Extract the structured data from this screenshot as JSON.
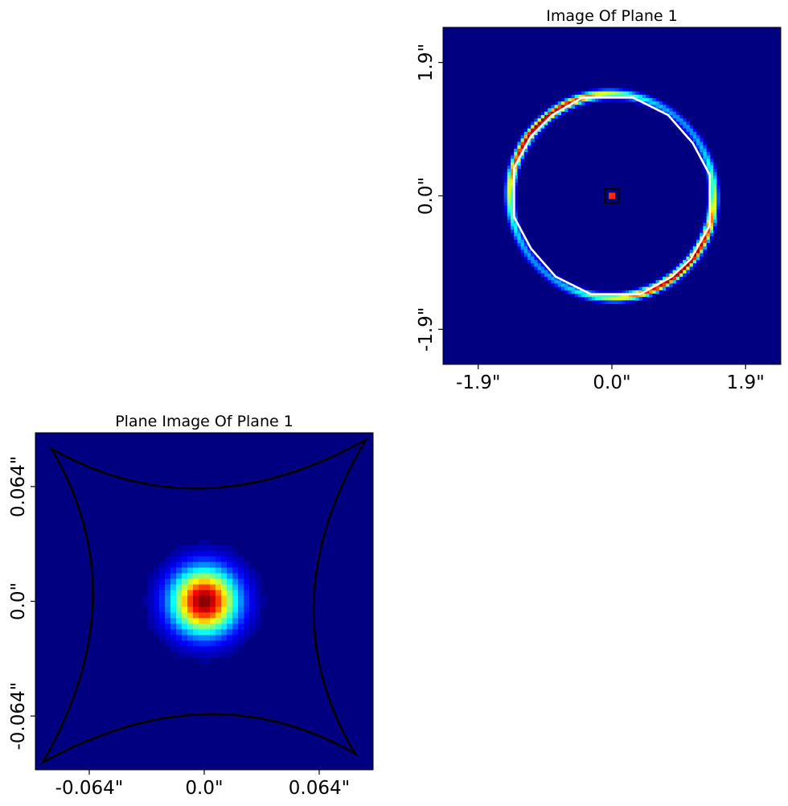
{
  "figure": {
    "colormap": "jet",
    "background": "#ffffff"
  },
  "chart_data": [
    {
      "type": "heatmap",
      "title": "Image Of Plane 1",
      "xlabel": "",
      "ylabel": "",
      "xlim": [
        -2.4,
        2.4
      ],
      "ylim": [
        -2.4,
        2.4
      ],
      "xticks": [
        -1.9,
        0.0,
        1.9
      ],
      "yticks": [
        -1.9,
        0.0,
        1.9
      ],
      "xtick_labels": [
        "-1.9\"",
        "0.0\"",
        "1.9\""
      ],
      "ytick_labels": [
        "-1.9\"",
        "0.0\"",
        "1.9\""
      ],
      "grid": false,
      "image": {
        "description": "Einstein ring of lensed light with arcs brightest at upper-left and lower-right, plus central compact image",
        "ring_radius": 1.45,
        "ring_width": 0.06,
        "bright_angles_deg": [
          135,
          315
        ],
        "central_peak": [
          0.0,
          0.0
        ]
      },
      "critical_curve": {
        "color": "#ffffff",
        "points": [
          [
            -0.42,
            1.4
          ],
          [
            0.3,
            1.4
          ],
          [
            0.8,
            1.15
          ],
          [
            1.15,
            0.75
          ],
          [
            1.39,
            0.3
          ],
          [
            1.39,
            -0.42
          ],
          [
            1.12,
            -0.9
          ],
          [
            0.85,
            -1.15
          ],
          [
            0.4,
            -1.4
          ],
          [
            -0.3,
            -1.4
          ],
          [
            -0.8,
            -1.15
          ],
          [
            -1.15,
            -0.75
          ],
          [
            -1.39,
            -0.3
          ],
          [
            -1.39,
            0.4
          ],
          [
            -1.15,
            0.85
          ],
          [
            -0.85,
            1.15
          ]
        ]
      },
      "caustic": {
        "color": "#000000",
        "halfsize": 0.1
      }
    },
    {
      "type": "heatmap",
      "title": "Plane Image Of Plane 1",
      "xlabel": "",
      "ylabel": "",
      "xlim": [
        -0.094,
        0.094
      ],
      "ylim": [
        -0.094,
        0.094
      ],
      "xticks": [
        -0.064,
        0.0,
        0.064
      ],
      "yticks": [
        -0.064,
        0.0,
        0.064
      ],
      "xtick_labels": [
        "-0.064\"",
        "0.0\"",
        "0.064\""
      ],
      "ytick_labels": [
        "-0.064\"",
        "0.0\"",
        "0.064\""
      ],
      "grid": false,
      "image": {
        "description": "Compact gaussian source centred at origin",
        "center": [
          0.0,
          0.0
        ],
        "sigma": 0.0125,
        "peak": 1.0
      },
      "caustic": {
        "color": "#000000",
        "corners": [
          [
            -0.085,
            0.085
          ],
          [
            0.09,
            0.09
          ],
          [
            0.084,
            -0.085
          ],
          [
            -0.09,
            -0.09
          ]
        ],
        "edge_midpoints": [
          [
            0.0,
            0.063
          ],
          [
            0.061,
            0.0
          ],
          [
            0.0,
            -0.063
          ],
          [
            -0.062,
            0.0
          ]
        ]
      }
    }
  ]
}
